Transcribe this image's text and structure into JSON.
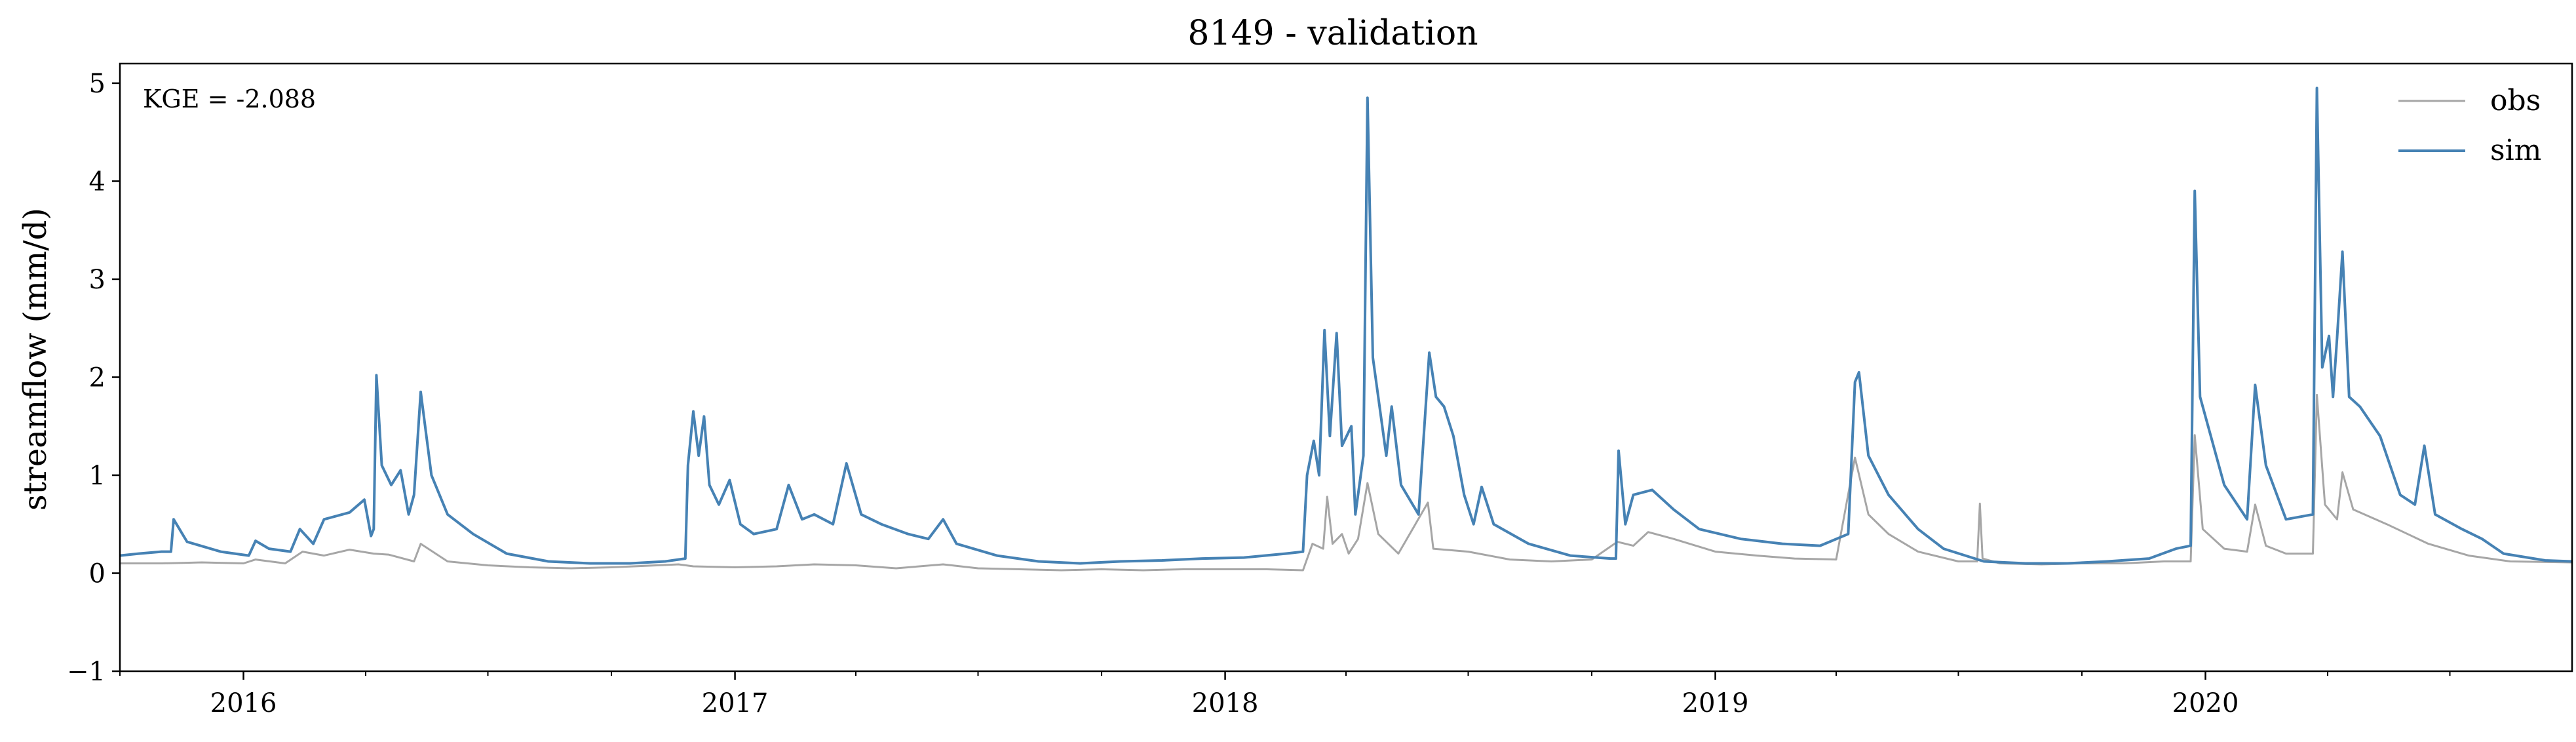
{
  "chart_data": {
    "type": "line",
    "title": "8149 - validation",
    "xlabel": "",
    "ylabel": "streamflow (mm/d)",
    "annotation": "KGE = -2.088",
    "xlim": [
      "2015-10-01",
      "2020-09-30"
    ],
    "ylim": [
      -1,
      5.2
    ],
    "yticks": [
      -1,
      0,
      1,
      2,
      3,
      4,
      5
    ],
    "ytick_labels": [
      "−1",
      "0",
      "1",
      "2",
      "3",
      "4",
      "5"
    ],
    "xticks": [
      "2016-01-01",
      "2017-01-01",
      "2018-01-01",
      "2019-01-01",
      "2020-01-01"
    ],
    "xtick_labels": [
      "2016",
      "2017",
      "2018",
      "2019",
      "2020"
    ],
    "grid": false,
    "legend_position": "top-right",
    "series": [
      {
        "name": "obs",
        "color": "#a6a6a6",
        "points": [
          [
            "2015-10-01",
            0.1
          ],
          [
            "2015-11-01",
            0.1
          ],
          [
            "2015-12-01",
            0.11
          ],
          [
            "2016-01-01",
            0.1
          ],
          [
            "2016-01-10",
            0.14
          ],
          [
            "2016-02-01",
            0.1
          ],
          [
            "2016-02-14",
            0.22
          ],
          [
            "2016-03-01",
            0.18
          ],
          [
            "2016-03-20",
            0.24
          ],
          [
            "2016-04-07",
            0.2
          ],
          [
            "2016-04-18",
            0.19
          ],
          [
            "2016-05-07",
            0.12
          ],
          [
            "2016-05-12",
            0.3
          ],
          [
            "2016-06-01",
            0.12
          ],
          [
            "2016-07-01",
            0.08
          ],
          [
            "2016-08-01",
            0.06
          ],
          [
            "2016-09-01",
            0.05
          ],
          [
            "2016-10-01",
            0.06
          ],
          [
            "2016-11-20",
            0.09
          ],
          [
            "2016-12-01",
            0.07
          ],
          [
            "2017-01-01",
            0.06
          ],
          [
            "2017-02-01",
            0.07
          ],
          [
            "2017-03-01",
            0.09
          ],
          [
            "2017-04-01",
            0.08
          ],
          [
            "2017-05-01",
            0.05
          ],
          [
            "2017-06-05",
            0.09
          ],
          [
            "2017-07-01",
            0.05
          ],
          [
            "2017-08-01",
            0.04
          ],
          [
            "2017-09-01",
            0.03
          ],
          [
            "2017-10-01",
            0.04
          ],
          [
            "2017-11-01",
            0.03
          ],
          [
            "2017-12-01",
            0.04
          ],
          [
            "2018-01-01",
            0.04
          ],
          [
            "2018-02-01",
            0.04
          ],
          [
            "2018-02-28",
            0.03
          ],
          [
            "2018-03-07",
            0.3
          ],
          [
            "2018-03-15",
            0.25
          ],
          [
            "2018-03-18",
            0.78
          ],
          [
            "2018-03-22",
            0.3
          ],
          [
            "2018-03-29",
            0.4
          ],
          [
            "2018-04-03",
            0.2
          ],
          [
            "2018-04-10",
            0.35
          ],
          [
            "2018-04-17",
            0.92
          ],
          [
            "2018-04-25",
            0.4
          ],
          [
            "2018-05-10",
            0.2
          ],
          [
            "2018-06-01",
            0.72
          ],
          [
            "2018-06-05",
            0.25
          ],
          [
            "2018-07-01",
            0.22
          ],
          [
            "2018-08-01",
            0.14
          ],
          [
            "2018-09-01",
            0.12
          ],
          [
            "2018-10-01",
            0.14
          ],
          [
            "2018-10-20",
            0.32
          ],
          [
            "2018-11-01",
            0.28
          ],
          [
            "2018-11-12",
            0.42
          ],
          [
            "2018-12-01",
            0.35
          ],
          [
            "2019-01-01",
            0.22
          ],
          [
            "2019-02-01",
            0.18
          ],
          [
            "2019-03-01",
            0.15
          ],
          [
            "2019-04-01",
            0.14
          ],
          [
            "2019-04-15",
            1.18
          ],
          [
            "2019-04-25",
            0.6
          ],
          [
            "2019-05-10",
            0.4
          ],
          [
            "2019-06-01",
            0.22
          ],
          [
            "2019-07-01",
            0.12
          ],
          [
            "2019-07-15",
            0.12
          ],
          [
            "2019-07-17",
            0.71
          ],
          [
            "2019-07-19",
            0.15
          ],
          [
            "2019-08-01",
            0.1
          ],
          [
            "2019-09-01",
            0.09
          ],
          [
            "2019-10-01",
            0.1
          ],
          [
            "2019-11-01",
            0.1
          ],
          [
            "2019-12-01",
            0.12
          ],
          [
            "2019-12-21",
            0.12
          ],
          [
            "2019-12-24",
            1.41
          ],
          [
            "2019-12-30",
            0.45
          ],
          [
            "2020-01-15",
            0.25
          ],
          [
            "2020-02-01",
            0.22
          ],
          [
            "2020-02-07",
            0.7
          ],
          [
            "2020-02-15",
            0.28
          ],
          [
            "2020-03-01",
            0.2
          ],
          [
            "2020-03-21",
            0.2
          ],
          [
            "2020-03-24",
            1.82
          ],
          [
            "2020-03-30",
            0.7
          ],
          [
            "2020-04-08",
            0.55
          ],
          [
            "2020-04-12",
            1.03
          ],
          [
            "2020-04-20",
            0.65
          ],
          [
            "2020-05-15",
            0.5
          ],
          [
            "2020-06-15",
            0.3
          ],
          [
            "2020-07-15",
            0.18
          ],
          [
            "2020-08-15",
            0.12
          ],
          [
            "2020-09-30",
            0.11
          ]
        ]
      },
      {
        "name": "sim",
        "color": "#4682b4",
        "points": [
          [
            "2015-10-01",
            0.18
          ],
          [
            "2015-10-15",
            0.2
          ],
          [
            "2015-11-01",
            0.22
          ],
          [
            "2015-11-08",
            0.22
          ],
          [
            "2015-11-10",
            0.55
          ],
          [
            "2015-11-20",
            0.32
          ],
          [
            "2015-12-15",
            0.22
          ],
          [
            "2016-01-05",
            0.18
          ],
          [
            "2016-01-10",
            0.33
          ],
          [
            "2016-01-20",
            0.25
          ],
          [
            "2016-02-05",
            0.22
          ],
          [
            "2016-02-12",
            0.45
          ],
          [
            "2016-02-22",
            0.3
          ],
          [
            "2016-03-01",
            0.55
          ],
          [
            "2016-03-20",
            0.62
          ],
          [
            "2016-03-31",
            0.75
          ],
          [
            "2016-04-05",
            0.38
          ],
          [
            "2016-04-07",
            0.45
          ],
          [
            "2016-04-09",
            2.02
          ],
          [
            "2016-04-13",
            1.1
          ],
          [
            "2016-04-20",
            0.9
          ],
          [
            "2016-04-27",
            1.05
          ],
          [
            "2016-05-03",
            0.6
          ],
          [
            "2016-05-07",
            0.8
          ],
          [
            "2016-05-12",
            1.85
          ],
          [
            "2016-05-20",
            1.0
          ],
          [
            "2016-06-01",
            0.6
          ],
          [
            "2016-06-20",
            0.4
          ],
          [
            "2016-07-15",
            0.2
          ],
          [
            "2016-08-15",
            0.12
          ],
          [
            "2016-09-15",
            0.1
          ],
          [
            "2016-10-15",
            0.1
          ],
          [
            "2016-11-10",
            0.12
          ],
          [
            "2016-11-25",
            0.15
          ],
          [
            "2016-11-27",
            1.1
          ],
          [
            "2016-12-01",
            1.65
          ],
          [
            "2016-12-05",
            1.2
          ],
          [
            "2016-12-09",
            1.6
          ],
          [
            "2016-12-13",
            0.9
          ],
          [
            "2016-12-20",
            0.7
          ],
          [
            "2016-12-28",
            0.95
          ],
          [
            "2017-01-05",
            0.5
          ],
          [
            "2017-01-15",
            0.4
          ],
          [
            "2017-02-01",
            0.45
          ],
          [
            "2017-02-10",
            0.9
          ],
          [
            "2017-02-20",
            0.55
          ],
          [
            "2017-03-01",
            0.6
          ],
          [
            "2017-03-15",
            0.5
          ],
          [
            "2017-03-25",
            1.12
          ],
          [
            "2017-04-05",
            0.6
          ],
          [
            "2017-04-20",
            0.5
          ],
          [
            "2017-05-10",
            0.4
          ],
          [
            "2017-05-25",
            0.35
          ],
          [
            "2017-06-05",
            0.55
          ],
          [
            "2017-06-15",
            0.3
          ],
          [
            "2017-07-15",
            0.18
          ],
          [
            "2017-08-15",
            0.12
          ],
          [
            "2017-09-15",
            0.1
          ],
          [
            "2017-10-15",
            0.12
          ],
          [
            "2017-11-15",
            0.13
          ],
          [
            "2017-12-15",
            0.15
          ],
          [
            "2018-01-15",
            0.16
          ],
          [
            "2018-02-15",
            0.2
          ],
          [
            "2018-02-28",
            0.22
          ],
          [
            "2018-03-03",
            1.0
          ],
          [
            "2018-03-08",
            1.35
          ],
          [
            "2018-03-12",
            1.0
          ],
          [
            "2018-03-16",
            2.48
          ],
          [
            "2018-03-20",
            1.4
          ],
          [
            "2018-03-25",
            2.45
          ],
          [
            "2018-03-29",
            1.3
          ],
          [
            "2018-04-05",
            1.5
          ],
          [
            "2018-04-08",
            0.6
          ],
          [
            "2018-04-14",
            1.2
          ],
          [
            "2018-04-17",
            4.85
          ],
          [
            "2018-04-21",
            2.2
          ],
          [
            "2018-04-25",
            1.8
          ],
          [
            "2018-05-01",
            1.2
          ],
          [
            "2018-05-05",
            1.7
          ],
          [
            "2018-05-12",
            0.9
          ],
          [
            "2018-05-25",
            0.6
          ],
          [
            "2018-06-02",
            2.25
          ],
          [
            "2018-06-07",
            1.8
          ],
          [
            "2018-06-13",
            1.7
          ],
          [
            "2018-06-20",
            1.4
          ],
          [
            "2018-06-28",
            0.8
          ],
          [
            "2018-07-05",
            0.5
          ],
          [
            "2018-07-11",
            0.88
          ],
          [
            "2018-07-20",
            0.5
          ],
          [
            "2018-08-15",
            0.3
          ],
          [
            "2018-09-15",
            0.18
          ],
          [
            "2018-10-15",
            0.15
          ],
          [
            "2018-10-19",
            0.15
          ],
          [
            "2018-10-21",
            1.25
          ],
          [
            "2018-10-26",
            0.5
          ],
          [
            "2018-11-01",
            0.8
          ],
          [
            "2018-11-15",
            0.85
          ],
          [
            "2018-12-01",
            0.65
          ],
          [
            "2018-12-20",
            0.45
          ],
          [
            "2019-01-20",
            0.35
          ],
          [
            "2019-02-20",
            0.3
          ],
          [
            "2019-03-20",
            0.28
          ],
          [
            "2019-04-10",
            0.4
          ],
          [
            "2019-04-15",
            1.95
          ],
          [
            "2019-04-18",
            2.05
          ],
          [
            "2019-04-25",
            1.2
          ],
          [
            "2019-05-10",
            0.8
          ],
          [
            "2019-06-01",
            0.45
          ],
          [
            "2019-06-20",
            0.25
          ],
          [
            "2019-07-20",
            0.12
          ],
          [
            "2019-08-20",
            0.1
          ],
          [
            "2019-09-20",
            0.1
          ],
          [
            "2019-10-20",
            0.12
          ],
          [
            "2019-11-20",
            0.15
          ],
          [
            "2019-12-10",
            0.25
          ],
          [
            "2019-12-21",
            0.28
          ],
          [
            "2019-12-24",
            3.9
          ],
          [
            "2019-12-28",
            1.8
          ],
          [
            "2020-01-15",
            0.9
          ],
          [
            "2020-02-01",
            0.55
          ],
          [
            "2020-02-07",
            1.92
          ],
          [
            "2020-02-15",
            1.1
          ],
          [
            "2020-03-01",
            0.55
          ],
          [
            "2020-03-21",
            0.6
          ],
          [
            "2020-03-24",
            4.95
          ],
          [
            "2020-03-28",
            2.1
          ],
          [
            "2020-04-02",
            2.42
          ],
          [
            "2020-04-05",
            1.8
          ],
          [
            "2020-04-08",
            2.4
          ],
          [
            "2020-04-12",
            3.28
          ],
          [
            "2020-04-17",
            1.8
          ],
          [
            "2020-04-25",
            1.7
          ],
          [
            "2020-05-10",
            1.4
          ],
          [
            "2020-05-25",
            0.8
          ],
          [
            "2020-06-05",
            0.7
          ],
          [
            "2020-06-12",
            1.3
          ],
          [
            "2020-06-20",
            0.6
          ],
          [
            "2020-07-10",
            0.45
          ],
          [
            "2020-07-25",
            0.35
          ],
          [
            "2020-08-10",
            0.2
          ],
          [
            "2020-09-10",
            0.13
          ],
          [
            "2020-09-30",
            0.12
          ]
        ]
      }
    ]
  }
}
